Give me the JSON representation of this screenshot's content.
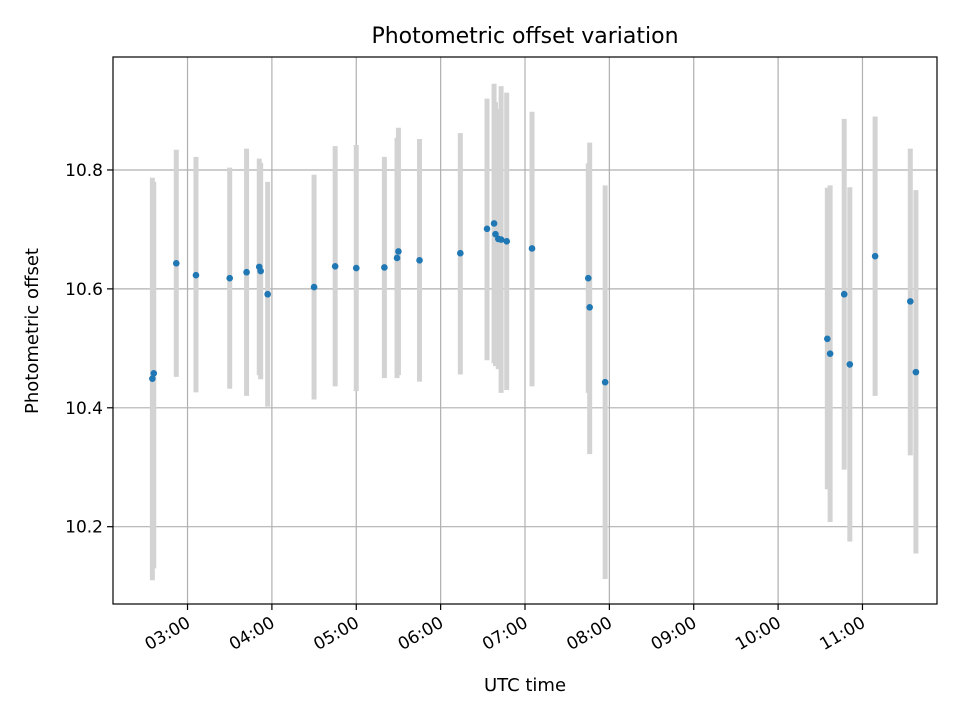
{
  "chart_data": {
    "type": "scatter",
    "title": "Photometric offset variation",
    "xlabel": "UTC time",
    "ylabel": "Photometric offset",
    "xlim": [
      "02:07",
      "11:53"
    ],
    "ylim": [
      10.07,
      10.99
    ],
    "x_ticks": [
      "03:00",
      "04:00",
      "05:00",
      "06:00",
      "07:00",
      "08:00",
      "09:00",
      "10:00",
      "11:00"
    ],
    "y_ticks": [
      10.2,
      10.4,
      10.6,
      10.8
    ],
    "grid": true,
    "x_tick_rotation": 30,
    "colors": {
      "point": "#1f77b4",
      "errorbar": "#d3d3d3",
      "grid": "#b0b0b0"
    },
    "points": [
      {
        "x": "02:35",
        "y": 10.449,
        "y_low": 10.11,
        "y_high": 10.787
      },
      {
        "x": "02:36",
        "y": 10.458,
        "y_low": 10.13,
        "y_high": 10.78
      },
      {
        "x": "02:52",
        "y": 10.643,
        "y_low": 10.452,
        "y_high": 10.834
      },
      {
        "x": "03:06",
        "y": 10.623,
        "y_low": 10.426,
        "y_high": 10.822
      },
      {
        "x": "03:30",
        "y": 10.618,
        "y_low": 10.432,
        "y_high": 10.804
      },
      {
        "x": "03:42",
        "y": 10.628,
        "y_low": 10.42,
        "y_high": 10.836
      },
      {
        "x": "03:51",
        "y": 10.637,
        "y_low": 10.455,
        "y_high": 10.819
      },
      {
        "x": "03:52",
        "y": 10.63,
        "y_low": 10.448,
        "y_high": 10.812
      },
      {
        "x": "03:57",
        "y": 10.591,
        "y_low": 10.402,
        "y_high": 10.78
      },
      {
        "x": "04:30",
        "y": 10.603,
        "y_low": 10.414,
        "y_high": 10.792
      },
      {
        "x": "04:45",
        "y": 10.638,
        "y_low": 10.436,
        "y_high": 10.84
      },
      {
        "x": "05:00",
        "y": 10.635,
        "y_low": 10.428,
        "y_high": 10.842
      },
      {
        "x": "05:20",
        "y": 10.636,
        "y_low": 10.45,
        "y_high": 10.822
      },
      {
        "x": "05:29",
        "y": 10.652,
        "y_low": 10.45,
        "y_high": 10.854
      },
      {
        "x": "05:30",
        "y": 10.663,
        "y_low": 10.455,
        "y_high": 10.871
      },
      {
        "x": "05:45",
        "y": 10.648,
        "y_low": 10.444,
        "y_high": 10.852
      },
      {
        "x": "06:14",
        "y": 10.66,
        "y_low": 10.456,
        "y_high": 10.862
      },
      {
        "x": "06:33",
        "y": 10.701,
        "y_low": 10.48,
        "y_high": 10.92
      },
      {
        "x": "06:38",
        "y": 10.71,
        "y_low": 10.475,
        "y_high": 10.945
      },
      {
        "x": "06:39",
        "y": 10.692,
        "y_low": 10.47,
        "y_high": 10.914
      },
      {
        "x": "06:41",
        "y": 10.684,
        "y_low": 10.465,
        "y_high": 10.903
      },
      {
        "x": "06:43",
        "y": 10.683,
        "y_low": 10.425,
        "y_high": 10.941
      },
      {
        "x": "06:47",
        "y": 10.68,
        "y_low": 10.43,
        "y_high": 10.93
      },
      {
        "x": "07:05",
        "y": 10.668,
        "y_low": 10.436,
        "y_high": 10.898
      },
      {
        "x": "07:45",
        "y": 10.618,
        "y_low": 10.425,
        "y_high": 10.811
      },
      {
        "x": "07:46",
        "y": 10.569,
        "y_low": 10.322,
        "y_high": 10.846
      },
      {
        "x": "07:57",
        "y": 10.443,
        "y_low": 10.112,
        "y_high": 10.774
      },
      {
        "x": "10:35",
        "y": 10.516,
        "y_low": 10.263,
        "y_high": 10.77
      },
      {
        "x": "10:37",
        "y": 10.491,
        "y_low": 10.208,
        "y_high": 10.774
      },
      {
        "x": "10:47",
        "y": 10.591,
        "y_low": 10.296,
        "y_high": 10.886
      },
      {
        "x": "10:51",
        "y": 10.473,
        "y_low": 10.175,
        "y_high": 10.771
      },
      {
        "x": "11:09",
        "y": 10.655,
        "y_low": 10.42,
        "y_high": 10.89
      },
      {
        "x": "11:34",
        "y": 10.579,
        "y_low": 10.32,
        "y_high": 10.836
      },
      {
        "x": "11:38",
        "y": 10.46,
        "y_low": 10.155,
        "y_high": 10.766
      }
    ]
  }
}
